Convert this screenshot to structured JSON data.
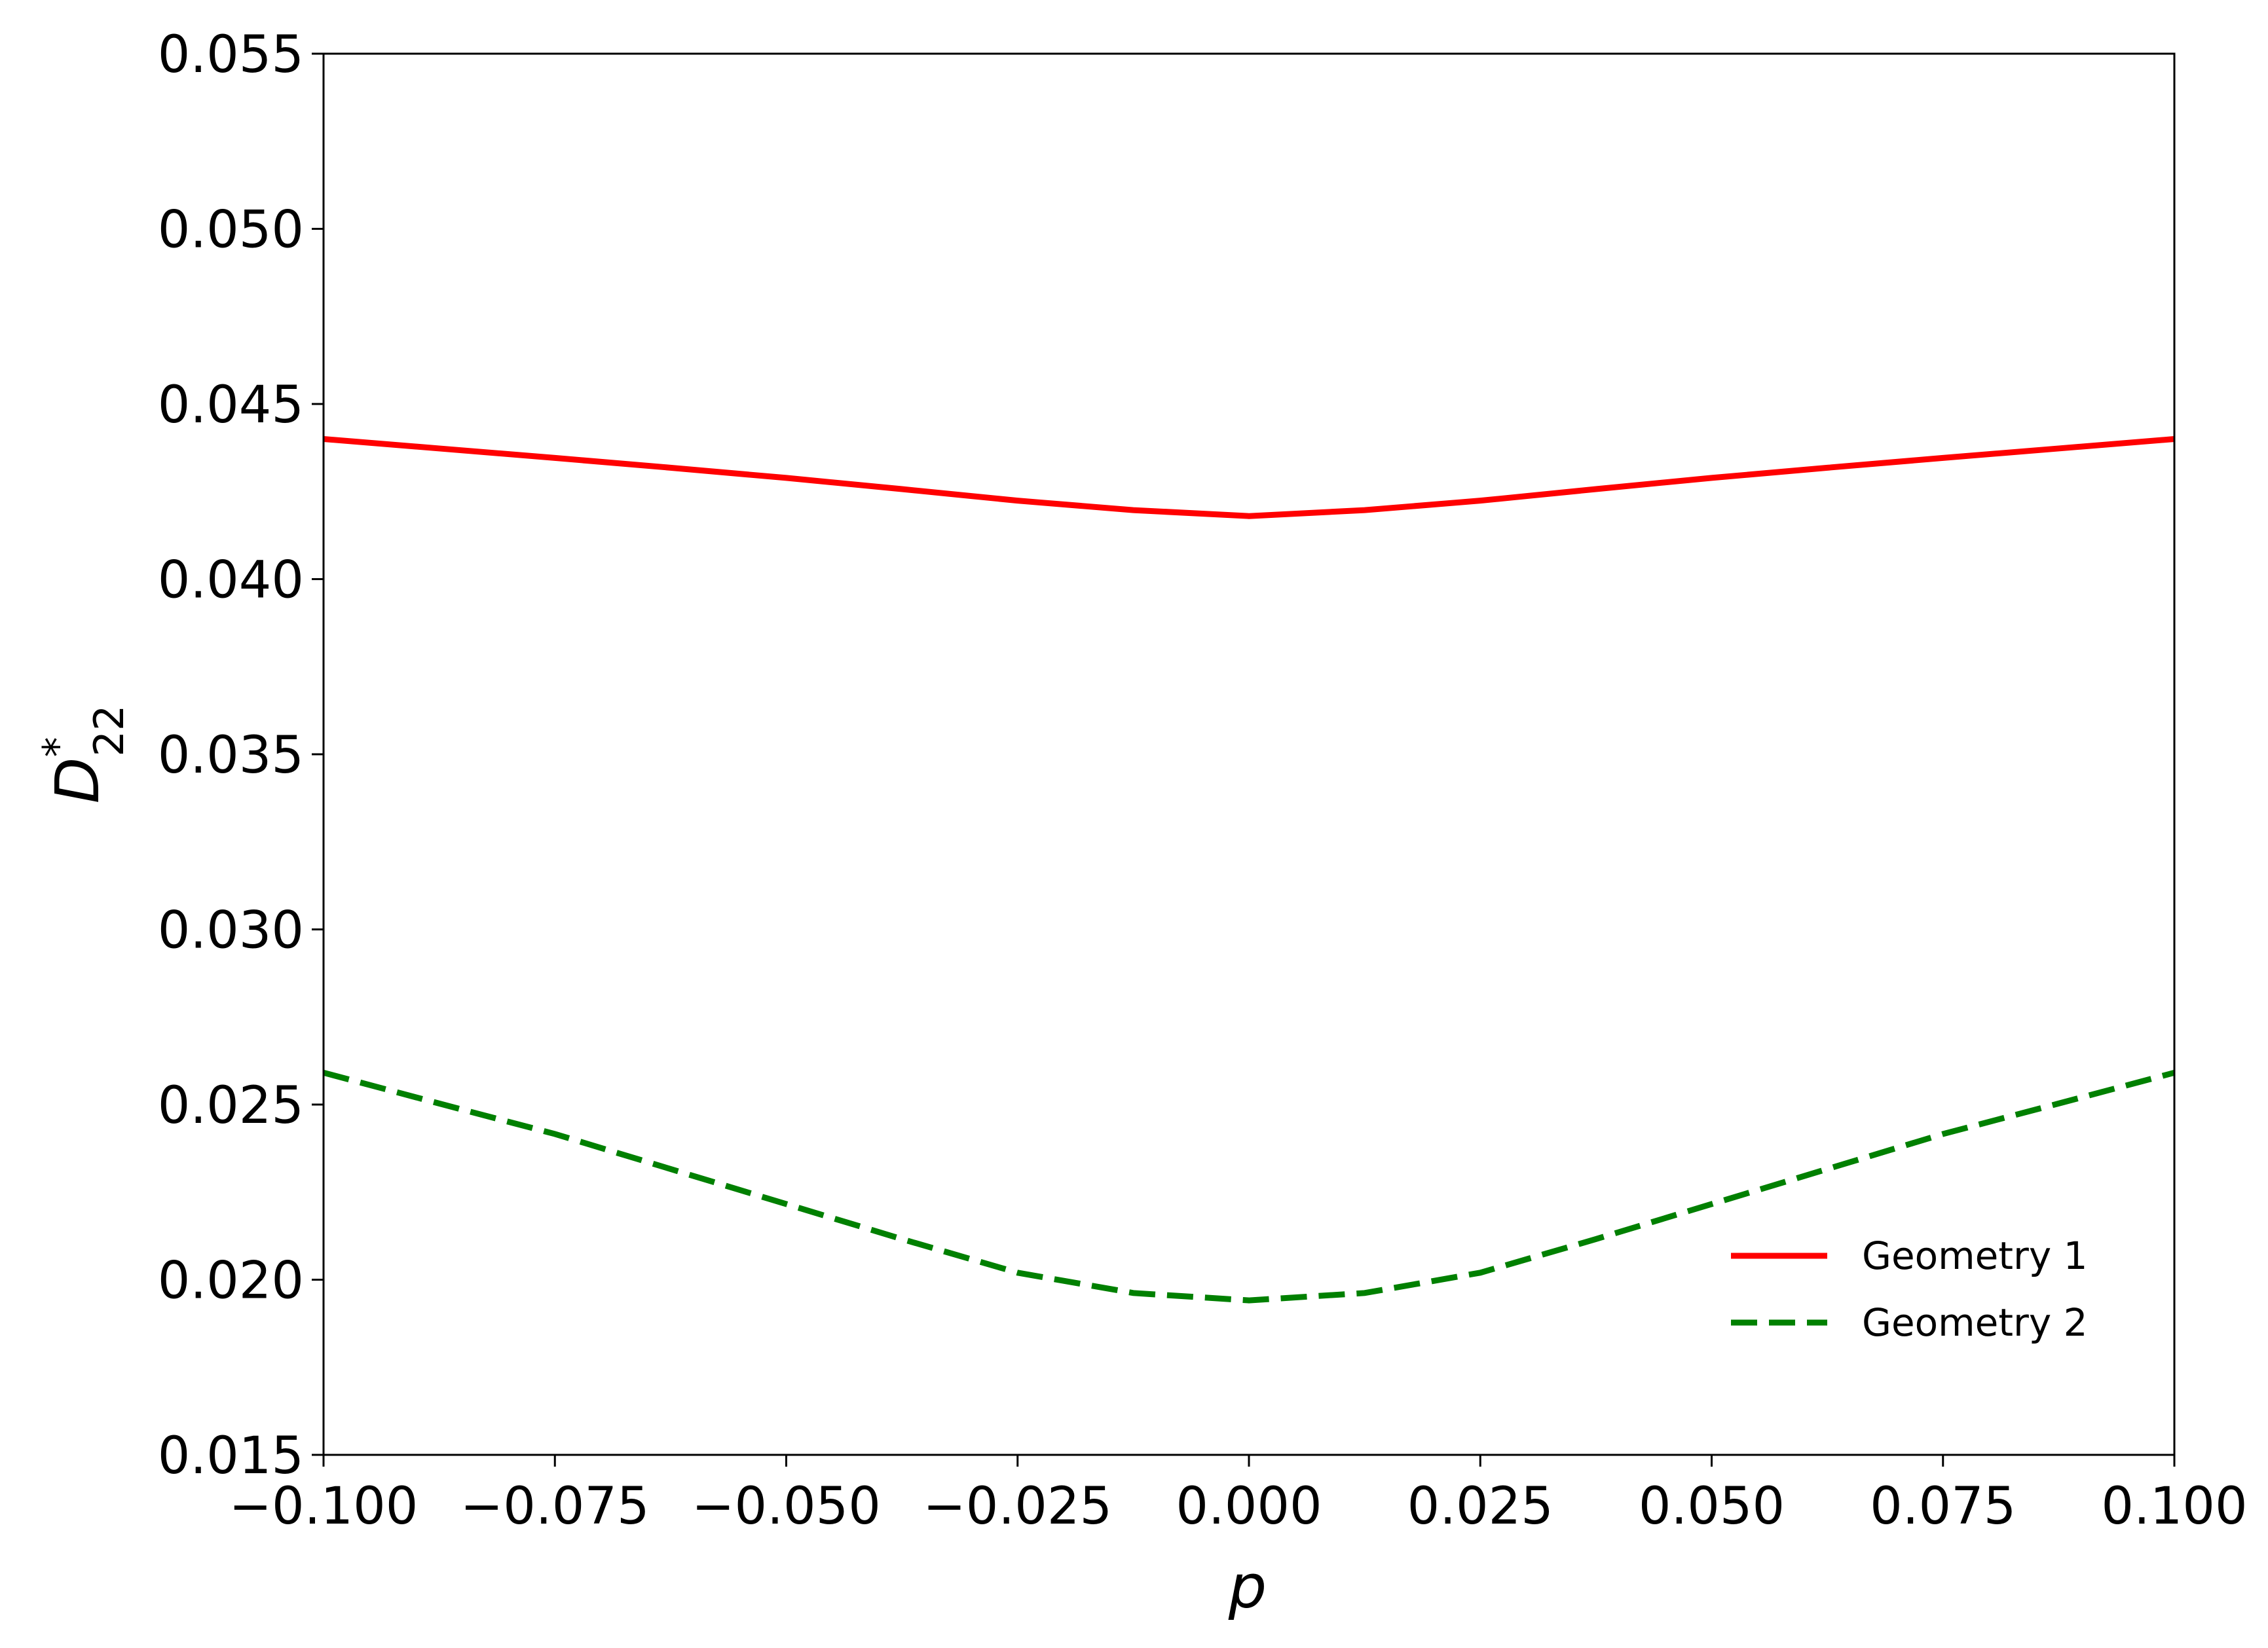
{
  "chart_data": {
    "type": "line",
    "x": [
      -0.1,
      -0.0875,
      -0.075,
      -0.0625,
      -0.05,
      -0.0375,
      -0.025,
      -0.0125,
      0,
      0.0125,
      0.025,
      0.0375,
      0.05,
      0.0625,
      0.075,
      0.0875,
      0.1
    ],
    "series": [
      {
        "name": "Geometry 1",
        "color": "#ff0000",
        "dash": false,
        "values": [
          0.044,
          0.04373,
          0.04346,
          0.04318,
          0.04289,
          0.04257,
          0.04224,
          0.04197,
          0.0418,
          0.04197,
          0.04224,
          0.04257,
          0.04289,
          0.04318,
          0.04346,
          0.04373,
          0.044
        ]
      },
      {
        "name": "Geometry 2",
        "color": "#008000",
        "dash": true,
        "values": [
          0.02591,
          0.02503,
          0.02416,
          0.02316,
          0.02216,
          0.02116,
          0.0202,
          0.01962,
          0.01941,
          0.01962,
          0.0202,
          0.02116,
          0.02216,
          0.02316,
          0.02416,
          0.02503,
          0.02591
        ]
      }
    ],
    "xlabel": "p",
    "ylabel": {
      "base": "D",
      "sup": "*",
      "sub": "22"
    },
    "xlim": [
      -0.1,
      0.1
    ],
    "ylim": [
      0.015,
      0.055
    ],
    "xticks": [
      {
        "value": -0.1,
        "label": "−0.100"
      },
      {
        "value": -0.075,
        "label": "−0.075"
      },
      {
        "value": -0.05,
        "label": "−0.050"
      },
      {
        "value": -0.025,
        "label": "−0.025"
      },
      {
        "value": 0,
        "label": "0.000"
      },
      {
        "value": 0.025,
        "label": "0.025"
      },
      {
        "value": 0.05,
        "label": "0.050"
      },
      {
        "value": 0.075,
        "label": "0.075"
      },
      {
        "value": 0.1,
        "label": "0.100"
      }
    ],
    "yticks": [
      {
        "value": 0.015,
        "label": "0.015"
      },
      {
        "value": 0.02,
        "label": "0.020"
      },
      {
        "value": 0.025,
        "label": "0.025"
      },
      {
        "value": 0.03,
        "label": "0.030"
      },
      {
        "value": 0.035,
        "label": "0.035"
      },
      {
        "value": 0.04,
        "label": "0.040"
      },
      {
        "value": 0.045,
        "label": "0.045"
      },
      {
        "value": 0.05,
        "label": "0.050"
      },
      {
        "value": 0.055,
        "label": "0.055"
      }
    ],
    "legend": "lower right",
    "grid": false
  }
}
